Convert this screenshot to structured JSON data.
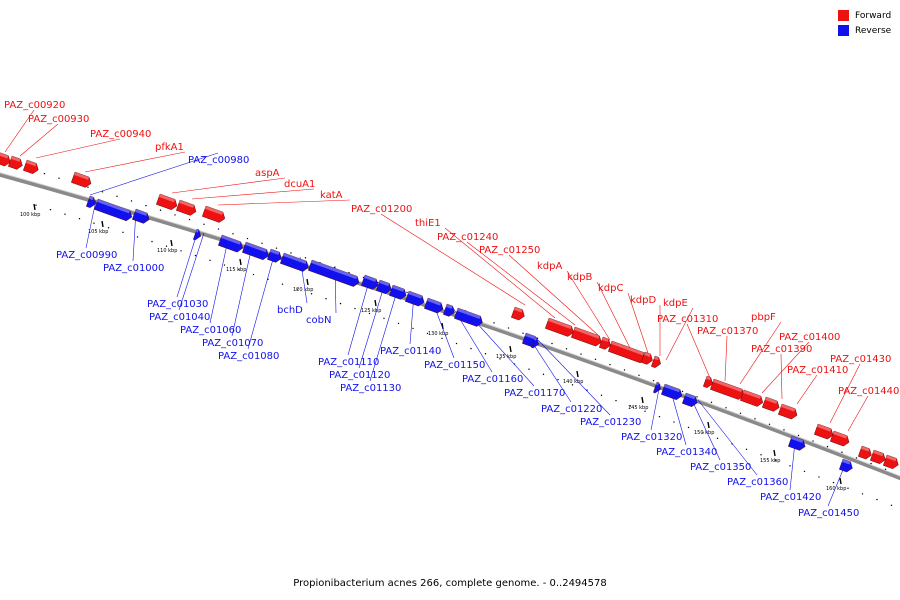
{
  "caption": "Propionibacterium acnes 266, complete genome. - 0..2494578",
  "legend": {
    "items": [
      {
        "label": "Forward",
        "color": "#ee1111"
      },
      {
        "label": "Reverse",
        "color": "#1111ee"
      }
    ]
  },
  "colors": {
    "forward": "#ee1111",
    "reverse": "#1111ee",
    "backbone": "#8a8a8a"
  },
  "ticks": [
    "100 kbp",
    "105 kbp",
    "110 kbp",
    "115 kbp",
    "120 kbp",
    "125 kbp",
    "130 kbp",
    "135 kbp",
    "140 kbp",
    "145 kbp",
    "150 kbp",
    "155 kbp",
    "160 kbp"
  ],
  "forward_genes": [
    "PAZ_c00920",
    "PAZ_c00930",
    "PAZ_c00940",
    "pfkA1",
    "aspA",
    "dcuA1",
    "katA",
    "PAZ_c01200",
    "thiE1",
    "PAZ_c01240",
    "PAZ_c01250",
    "kdpA",
    "kdpB",
    "kdpC",
    "kdpD",
    "kdpE",
    "PAZ_c01310",
    "PAZ_c01370",
    "pbpF",
    "PAZ_c01400",
    "PAZ_c01390",
    "PAZ_c01410",
    "PAZ_c01430",
    "PAZ_c01440"
  ],
  "reverse_genes": [
    "PAZ_c00980",
    "PAZ_c00990",
    "PAZ_c01000",
    "PAZ_c01030",
    "PAZ_c01040",
    "PAZ_c01060",
    "PAZ_c01070",
    "PAZ_c01080",
    "bchD",
    "cobN",
    "PAZ_c01110",
    "PAZ_c01120",
    "PAZ_c01130",
    "PAZ_c01140",
    "PAZ_c01150",
    "PAZ_c01160",
    "PAZ_c01170",
    "PAZ_c01220",
    "PAZ_c01230",
    "PAZ_c01320",
    "PAZ_c01340",
    "PAZ_c01350",
    "PAZ_c01360",
    "PAZ_c01420",
    "PAZ_c01450"
  ]
}
